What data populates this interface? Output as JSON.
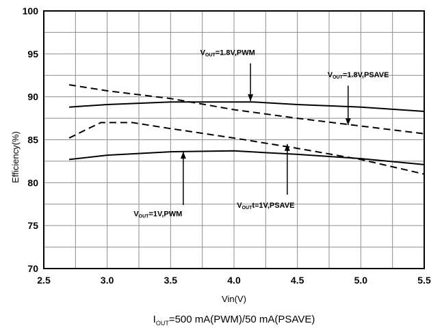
{
  "chart_data": {
    "type": "line",
    "ylabel": "Efficiency(%)",
    "xlabel": "Vin(V)",
    "xlim": [
      2.5,
      5.5
    ],
    "ylim": [
      70,
      100
    ],
    "x_ticks": [
      "2.5",
      "3.0",
      "3.5",
      "4.0",
      "4.5",
      "5.0",
      "5.5"
    ],
    "y_ticks": [
      "70",
      "75",
      "80",
      "85",
      "90",
      "95",
      "100"
    ],
    "grid": true,
    "caption": {
      "main": "I",
      "sub": "OUT",
      "rest": "=500 mA(PWM)/50 mA(PSAVE)"
    },
    "series": [
      {
        "style": "solid",
        "points": [
          [
            2.7,
            88.8
          ],
          [
            3.0,
            89.1
          ],
          [
            3.5,
            89.4
          ],
          [
            4.0,
            89.4
          ],
          [
            4.15,
            89.4
          ],
          [
            4.5,
            89.1
          ],
          [
            5.0,
            88.8
          ],
          [
            5.5,
            88.3
          ]
        ]
      },
      {
        "style": "dashed",
        "points": [
          [
            2.7,
            91.4
          ],
          [
            3.0,
            90.7
          ],
          [
            3.5,
            89.8
          ],
          [
            4.0,
            88.5
          ],
          [
            4.5,
            87.5
          ],
          [
            5.0,
            86.6
          ],
          [
            5.5,
            85.7
          ]
        ]
      },
      {
        "style": "solid",
        "points": [
          [
            2.7,
            82.7
          ],
          [
            3.0,
            83.2
          ],
          [
            3.5,
            83.6
          ],
          [
            4.0,
            83.7
          ],
          [
            4.5,
            83.3
          ],
          [
            5.0,
            82.8
          ],
          [
            5.5,
            82.1
          ]
        ]
      },
      {
        "style": "dashed",
        "points": [
          [
            2.7,
            85.2
          ],
          [
            2.85,
            86.3
          ],
          [
            2.95,
            87.0
          ],
          [
            3.2,
            87.0
          ],
          [
            3.5,
            86.3
          ],
          [
            4.0,
            85.2
          ],
          [
            4.5,
            84.0
          ],
          [
            5.0,
            82.7
          ],
          [
            5.5,
            81.0
          ]
        ]
      }
    ],
    "annotations": [
      {
        "main": "V",
        "sub": "OUT",
        "rest": "=1.8V,PWM",
        "x": 3.95,
        "y": 95.2,
        "arrow_from": [
          4.13,
          93.9
        ],
        "arrow_to": [
          4.13,
          89.5
        ]
      },
      {
        "main": "V",
        "sub": "OUT",
        "rest": "=1.8V,PSAVE",
        "x": 4.98,
        "y": 92.6,
        "arrow_from": [
          4.9,
          91.3
        ],
        "arrow_to": [
          4.9,
          86.7
        ]
      },
      {
        "main": "V",
        "sub": "OUT",
        "rest": "=1V,PWM",
        "x": 3.4,
        "y": 76.4,
        "arrow_from": [
          3.6,
          77.4
        ],
        "arrow_to": [
          3.6,
          83.6
        ]
      },
      {
        "main": "V",
        "sub": "OUT",
        "rest": "t=1V,PSAVE",
        "x": 4.25,
        "y": 77.4,
        "arrow_from": [
          4.42,
          78.6
        ],
        "arrow_to": [
          4.42,
          84.5
        ]
      }
    ],
    "colors": {
      "line": "#000000",
      "grid": "#8c8c8c",
      "frame": "#000000"
    }
  }
}
